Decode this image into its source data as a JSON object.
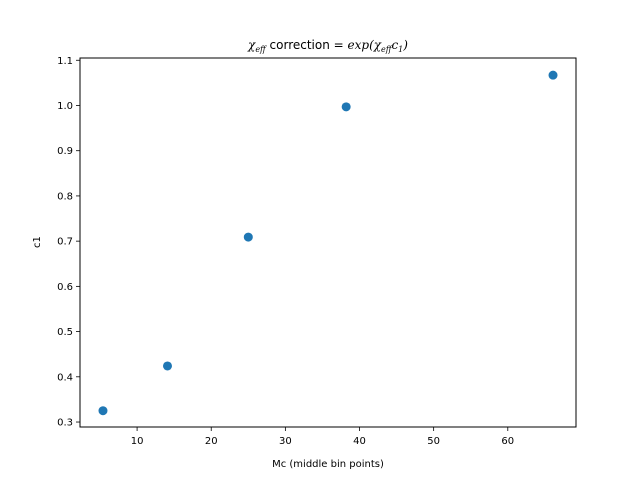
{
  "chart_data": {
    "type": "scatter",
    "title": {
      "pre": "χ",
      "pre_sub": "eff",
      "middle": " correction ",
      "formula": "= exp(χ",
      "formula_sub": "eff",
      "formula_tail": "c",
      "formula_tail_sub": "1",
      "close": ")"
    },
    "xlabel": "Mc (middle bin points)",
    "ylabel": "c1",
    "xlim": [
      2.3,
      69.2
    ],
    "ylim": [
      0.289,
      1.105
    ],
    "xticks": [
      10,
      20,
      30,
      40,
      50,
      60
    ],
    "yticks": [
      0.3,
      0.4,
      0.5,
      0.6,
      0.7,
      0.8,
      0.9,
      1.0,
      1.1
    ],
    "ytick_labels": [
      "0.3",
      "0.4",
      "0.5",
      "0.6",
      "0.7",
      "0.8",
      "0.9",
      "1.0",
      "1.1"
    ],
    "grid": false,
    "marker_color": "#1f77b4",
    "series": [
      {
        "x": [
          5.4,
          14.1,
          25.0,
          38.2,
          66.1
        ],
        "y": [
          0.325,
          0.424,
          0.709,
          0.997,
          1.067
        ]
      }
    ]
  }
}
